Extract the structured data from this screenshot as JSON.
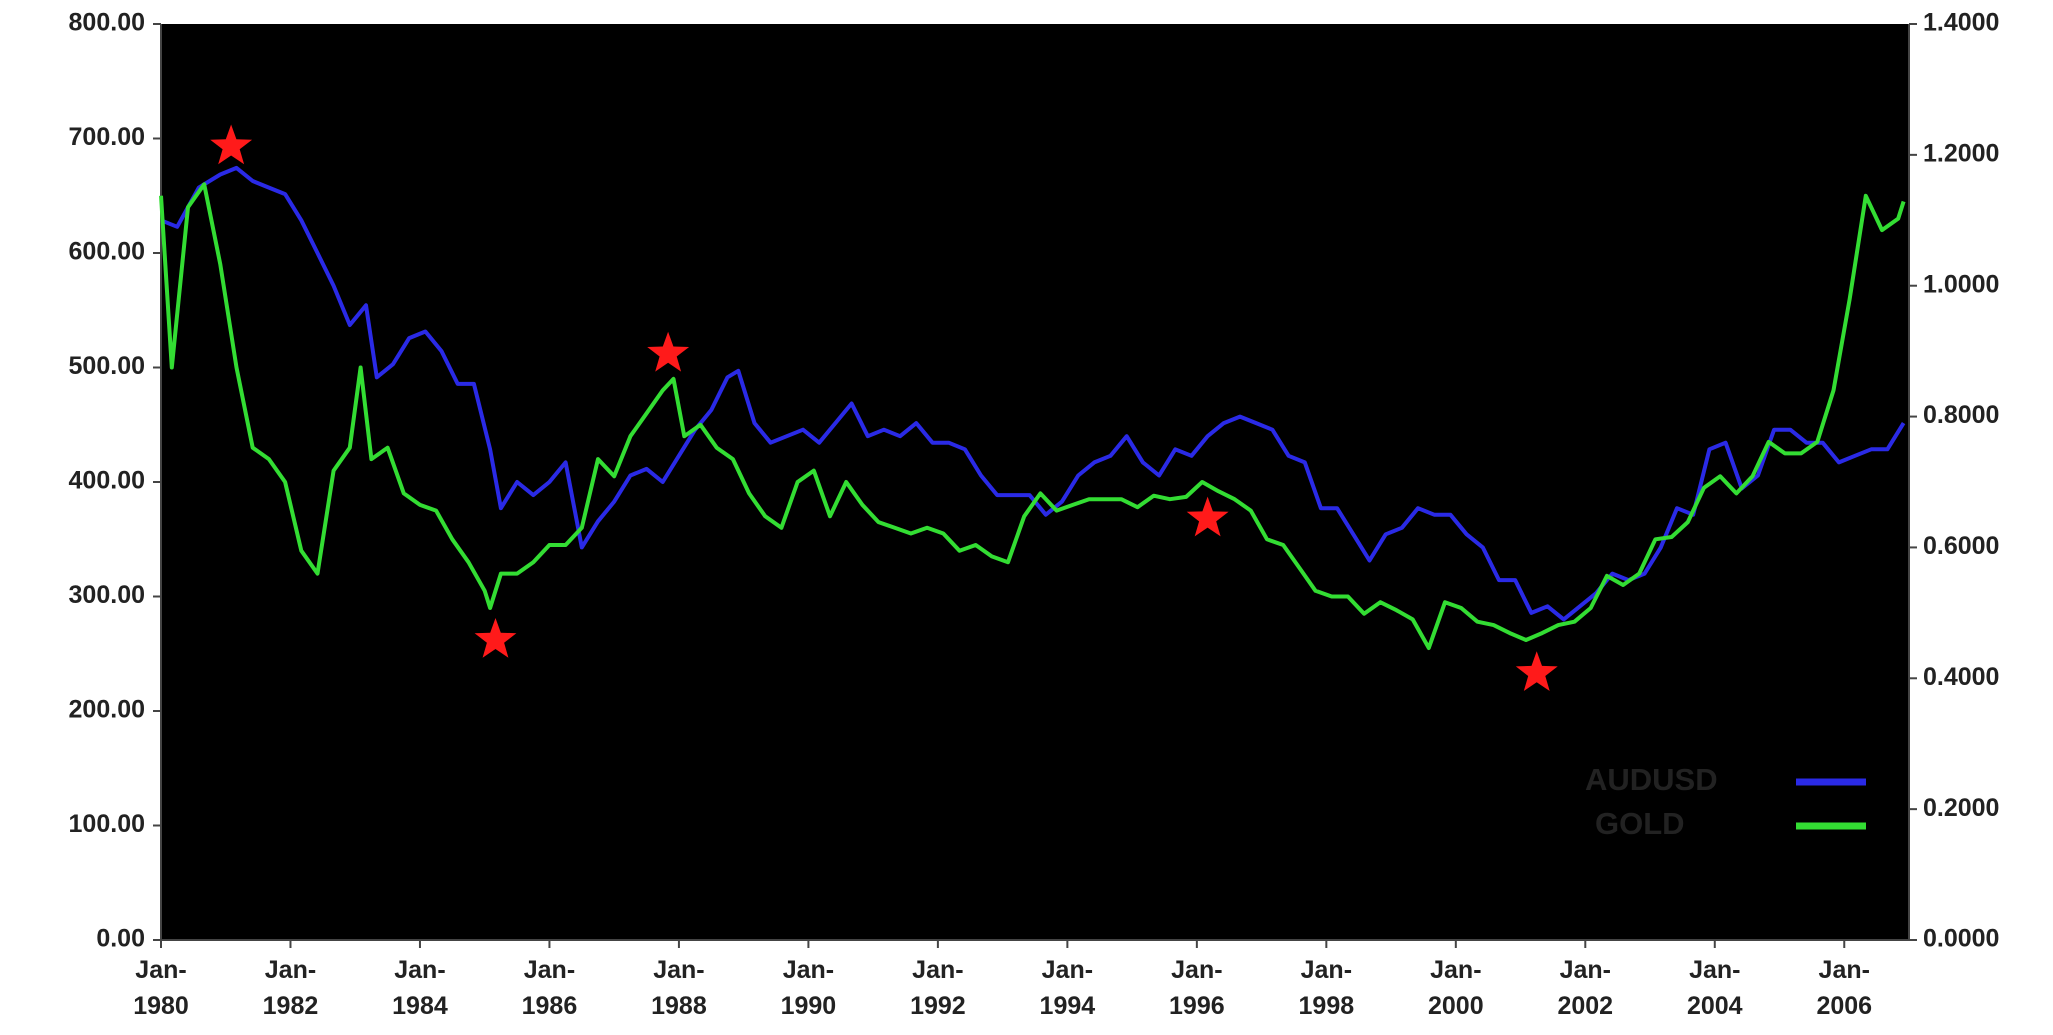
{
  "chart_data": {
    "type": "line",
    "xlim": [
      "1980-01",
      "2007-01"
    ],
    "xticks": [
      {
        "value": "1980-01",
        "label": "Jan-\n1980"
      },
      {
        "value": "1982-01",
        "label": "Jan-\n1982"
      },
      {
        "value": "1984-01",
        "label": "Jan-\n1984"
      },
      {
        "value": "1986-01",
        "label": "Jan-\n1986"
      },
      {
        "value": "1988-01",
        "label": "Jan-\n1988"
      },
      {
        "value": "1990-01",
        "label": "Jan-\n1990"
      },
      {
        "value": "1992-01",
        "label": "Jan-\n1992"
      },
      {
        "value": "1994-01",
        "label": "Jan-\n1994"
      },
      {
        "value": "1996-01",
        "label": "Jan-\n1996"
      },
      {
        "value": "1998-01",
        "label": "Jan-\n1998"
      },
      {
        "value": "2000-01",
        "label": "Jan-\n2000"
      },
      {
        "value": "2002-01",
        "label": "Jan-\n2002"
      },
      {
        "value": "2004-01",
        "label": "Jan-\n2004"
      },
      {
        "value": "2006-01",
        "label": "Jan-\n2006"
      }
    ],
    "ylim": [
      0,
      800
    ],
    "yticks": [
      {
        "value": 0,
        "label": "0.00"
      },
      {
        "value": 100,
        "label": "100.00"
      },
      {
        "value": 200,
        "label": "200.00"
      },
      {
        "value": 300,
        "label": "300.00"
      },
      {
        "value": 400,
        "label": "400.00"
      },
      {
        "value": 500,
        "label": "500.00"
      },
      {
        "value": 600,
        "label": "600.00"
      },
      {
        "value": 700,
        "label": "700.00"
      },
      {
        "value": 800,
        "label": "800.00"
      }
    ],
    "y2lim": [
      0,
      1.4
    ],
    "y2ticks": [
      {
        "value": 0,
        "label": "0.0000"
      },
      {
        "value": 0.2,
        "label": "0.2000"
      },
      {
        "value": 0.4,
        "label": "0.4000"
      },
      {
        "value": 0.6,
        "label": "0.6000"
      },
      {
        "value": 0.8,
        "label": "0.8000"
      },
      {
        "value": 1.0,
        "label": "1.0000"
      },
      {
        "value": 1.2,
        "label": "1.2000"
      },
      {
        "value": 1.4,
        "label": "1.4000"
      }
    ],
    "plot_background": "#000000",
    "legend": "lower right",
    "series": [
      {
        "name": "AUDUSD",
        "color": "#2a2ae6",
        "axis": "y2",
        "x": [
          "1980-01",
          "1980-04",
          "1980-08",
          "1980-12",
          "1981-03",
          "1981-06",
          "1981-09",
          "1981-12",
          "1982-03",
          "1982-06",
          "1982-09",
          "1982-12",
          "1983-03",
          "1983-05",
          "1983-08",
          "1983-11",
          "1984-02",
          "1984-05",
          "1984-08",
          "1984-11",
          "1985-02",
          "1985-04",
          "1985-07",
          "1985-10",
          "1986-01",
          "1986-04",
          "1986-07",
          "1986-10",
          "1987-01",
          "1987-04",
          "1987-07",
          "1987-10",
          "1988-01",
          "1988-04",
          "1988-07",
          "1988-10",
          "1988-12",
          "1989-03",
          "1989-06",
          "1989-09",
          "1989-12",
          "1990-03",
          "1990-06",
          "1990-09",
          "1990-12",
          "1991-03",
          "1991-06",
          "1991-09",
          "1991-12",
          "1992-03",
          "1992-06",
          "1992-09",
          "1992-12",
          "1993-03",
          "1993-06",
          "1993-09",
          "1993-12",
          "1994-03",
          "1994-06",
          "1994-09",
          "1994-12",
          "1995-03",
          "1995-06",
          "1995-09",
          "1995-12",
          "1996-03",
          "1996-06",
          "1996-09",
          "1996-12",
          "1997-03",
          "1997-06",
          "1997-09",
          "1997-12",
          "1998-03",
          "1998-06",
          "1998-09",
          "1998-12",
          "1999-03",
          "1999-06",
          "1999-09",
          "1999-12",
          "2000-03",
          "2000-06",
          "2000-09",
          "2000-12",
          "2001-03",
          "2001-06",
          "2001-09",
          "2001-12",
          "2002-03",
          "2002-06",
          "2002-09",
          "2002-12",
          "2003-03",
          "2003-06",
          "2003-09",
          "2003-12",
          "2004-03",
          "2004-06",
          "2004-09",
          "2004-12",
          "2005-03",
          "2005-06",
          "2005-09",
          "2005-12",
          "2006-03",
          "2006-06",
          "2006-09",
          "2006-12"
        ],
        "values": [
          1.1,
          1.09,
          1.15,
          1.17,
          1.18,
          1.16,
          1.15,
          1.14,
          1.1,
          1.05,
          1.0,
          0.94,
          0.97,
          0.86,
          0.88,
          0.92,
          0.93,
          0.9,
          0.85,
          0.85,
          0.75,
          0.66,
          0.7,
          0.68,
          0.7,
          0.73,
          0.6,
          0.64,
          0.67,
          0.71,
          0.72,
          0.7,
          0.74,
          0.78,
          0.81,
          0.86,
          0.87,
          0.79,
          0.76,
          0.77,
          0.78,
          0.76,
          0.79,
          0.82,
          0.77,
          0.78,
          0.77,
          0.79,
          0.76,
          0.76,
          0.75,
          0.71,
          0.68,
          0.68,
          0.68,
          0.65,
          0.67,
          0.71,
          0.73,
          0.74,
          0.77,
          0.73,
          0.71,
          0.75,
          0.74,
          0.77,
          0.79,
          0.8,
          0.79,
          0.78,
          0.74,
          0.73,
          0.66,
          0.66,
          0.62,
          0.58,
          0.62,
          0.63,
          0.66,
          0.65,
          0.65,
          0.62,
          0.6,
          0.55,
          0.55,
          0.5,
          0.51,
          0.49,
          0.51,
          0.53,
          0.56,
          0.55,
          0.56,
          0.6,
          0.66,
          0.65,
          0.75,
          0.76,
          0.69,
          0.71,
          0.78,
          0.78,
          0.76,
          0.76,
          0.73,
          0.74,
          0.75,
          0.75,
          0.79
        ]
      },
      {
        "name": "GOLD",
        "color": "#33dd33",
        "axis": "y",
        "x": [
          "1980-01",
          "1980-03",
          "1980-06",
          "1980-09",
          "1980-12",
          "1981-03",
          "1981-06",
          "1981-09",
          "1981-12",
          "1982-03",
          "1982-06",
          "1982-09",
          "1982-12",
          "1983-02",
          "1983-04",
          "1983-07",
          "1983-10",
          "1984-01",
          "1984-04",
          "1984-07",
          "1984-10",
          "1985-01",
          "1985-02",
          "1985-04",
          "1985-07",
          "1985-10",
          "1986-01",
          "1986-04",
          "1986-07",
          "1986-10",
          "1987-01",
          "1987-04",
          "1987-07",
          "1987-10",
          "1987-12",
          "1988-02",
          "1988-05",
          "1988-08",
          "1988-11",
          "1989-02",
          "1989-05",
          "1989-08",
          "1989-11",
          "1990-02",
          "1990-05",
          "1990-08",
          "1990-11",
          "1991-02",
          "1991-05",
          "1991-08",
          "1991-11",
          "1992-02",
          "1992-05",
          "1992-08",
          "1992-11",
          "1993-02",
          "1993-05",
          "1993-08",
          "1993-11",
          "1994-02",
          "1994-05",
          "1994-08",
          "1994-11",
          "1995-02",
          "1995-05",
          "1995-08",
          "1995-11",
          "1996-02",
          "1996-05",
          "1996-08",
          "1996-11",
          "1997-02",
          "1997-05",
          "1997-08",
          "1997-11",
          "1998-02",
          "1998-05",
          "1998-08",
          "1998-11",
          "1999-02",
          "1999-05",
          "1999-08",
          "1999-11",
          "2000-02",
          "2000-05",
          "2000-08",
          "2000-11",
          "2001-02",
          "2001-05",
          "2001-08",
          "2001-11",
          "2002-02",
          "2002-05",
          "2002-08",
          "2002-11",
          "2003-02",
          "2003-05",
          "2003-08",
          "2003-11",
          "2004-02",
          "2004-05",
          "2004-08",
          "2004-11",
          "2005-02",
          "2005-05",
          "2005-08",
          "2005-11",
          "2006-02",
          "2006-05",
          "2006-08",
          "2006-11",
          "2006-12"
        ],
        "values": [
          650,
          500,
          640,
          660,
          590,
          500,
          430,
          420,
          400,
          340,
          320,
          410,
          430,
          500,
          420,
          430,
          390,
          380,
          375,
          350,
          330,
          305,
          290,
          320,
          320,
          330,
          345,
          345,
          360,
          420,
          405,
          440,
          460,
          480,
          490,
          440,
          450,
          430,
          420,
          390,
          370,
          360,
          400,
          410,
          370,
          400,
          380,
          365,
          360,
          355,
          360,
          355,
          340,
          345,
          335,
          330,
          370,
          390,
          375,
          380,
          385,
          385,
          385,
          378,
          388,
          385,
          387,
          400,
          392,
          385,
          375,
          350,
          345,
          325,
          305,
          300,
          300,
          285,
          295,
          288,
          280,
          255,
          295,
          290,
          278,
          275,
          268,
          262,
          268,
          275,
          278,
          290,
          318,
          310,
          320,
          350,
          352,
          365,
          395,
          405,
          390,
          405,
          435,
          425,
          425,
          435,
          480,
          560,
          650,
          620,
          630,
          645
        ]
      }
    ],
    "star_color": "#ff1a1a",
    "stars": [
      {
        "x": "1981-02",
        "y": 693
      },
      {
        "x": "1985-03",
        "y": 262
      },
      {
        "x": "1987-11",
        "y": 512
      },
      {
        "x": "1996-03",
        "y": 368
      },
      {
        "x": "2001-04",
        "y": 233
      }
    ]
  }
}
